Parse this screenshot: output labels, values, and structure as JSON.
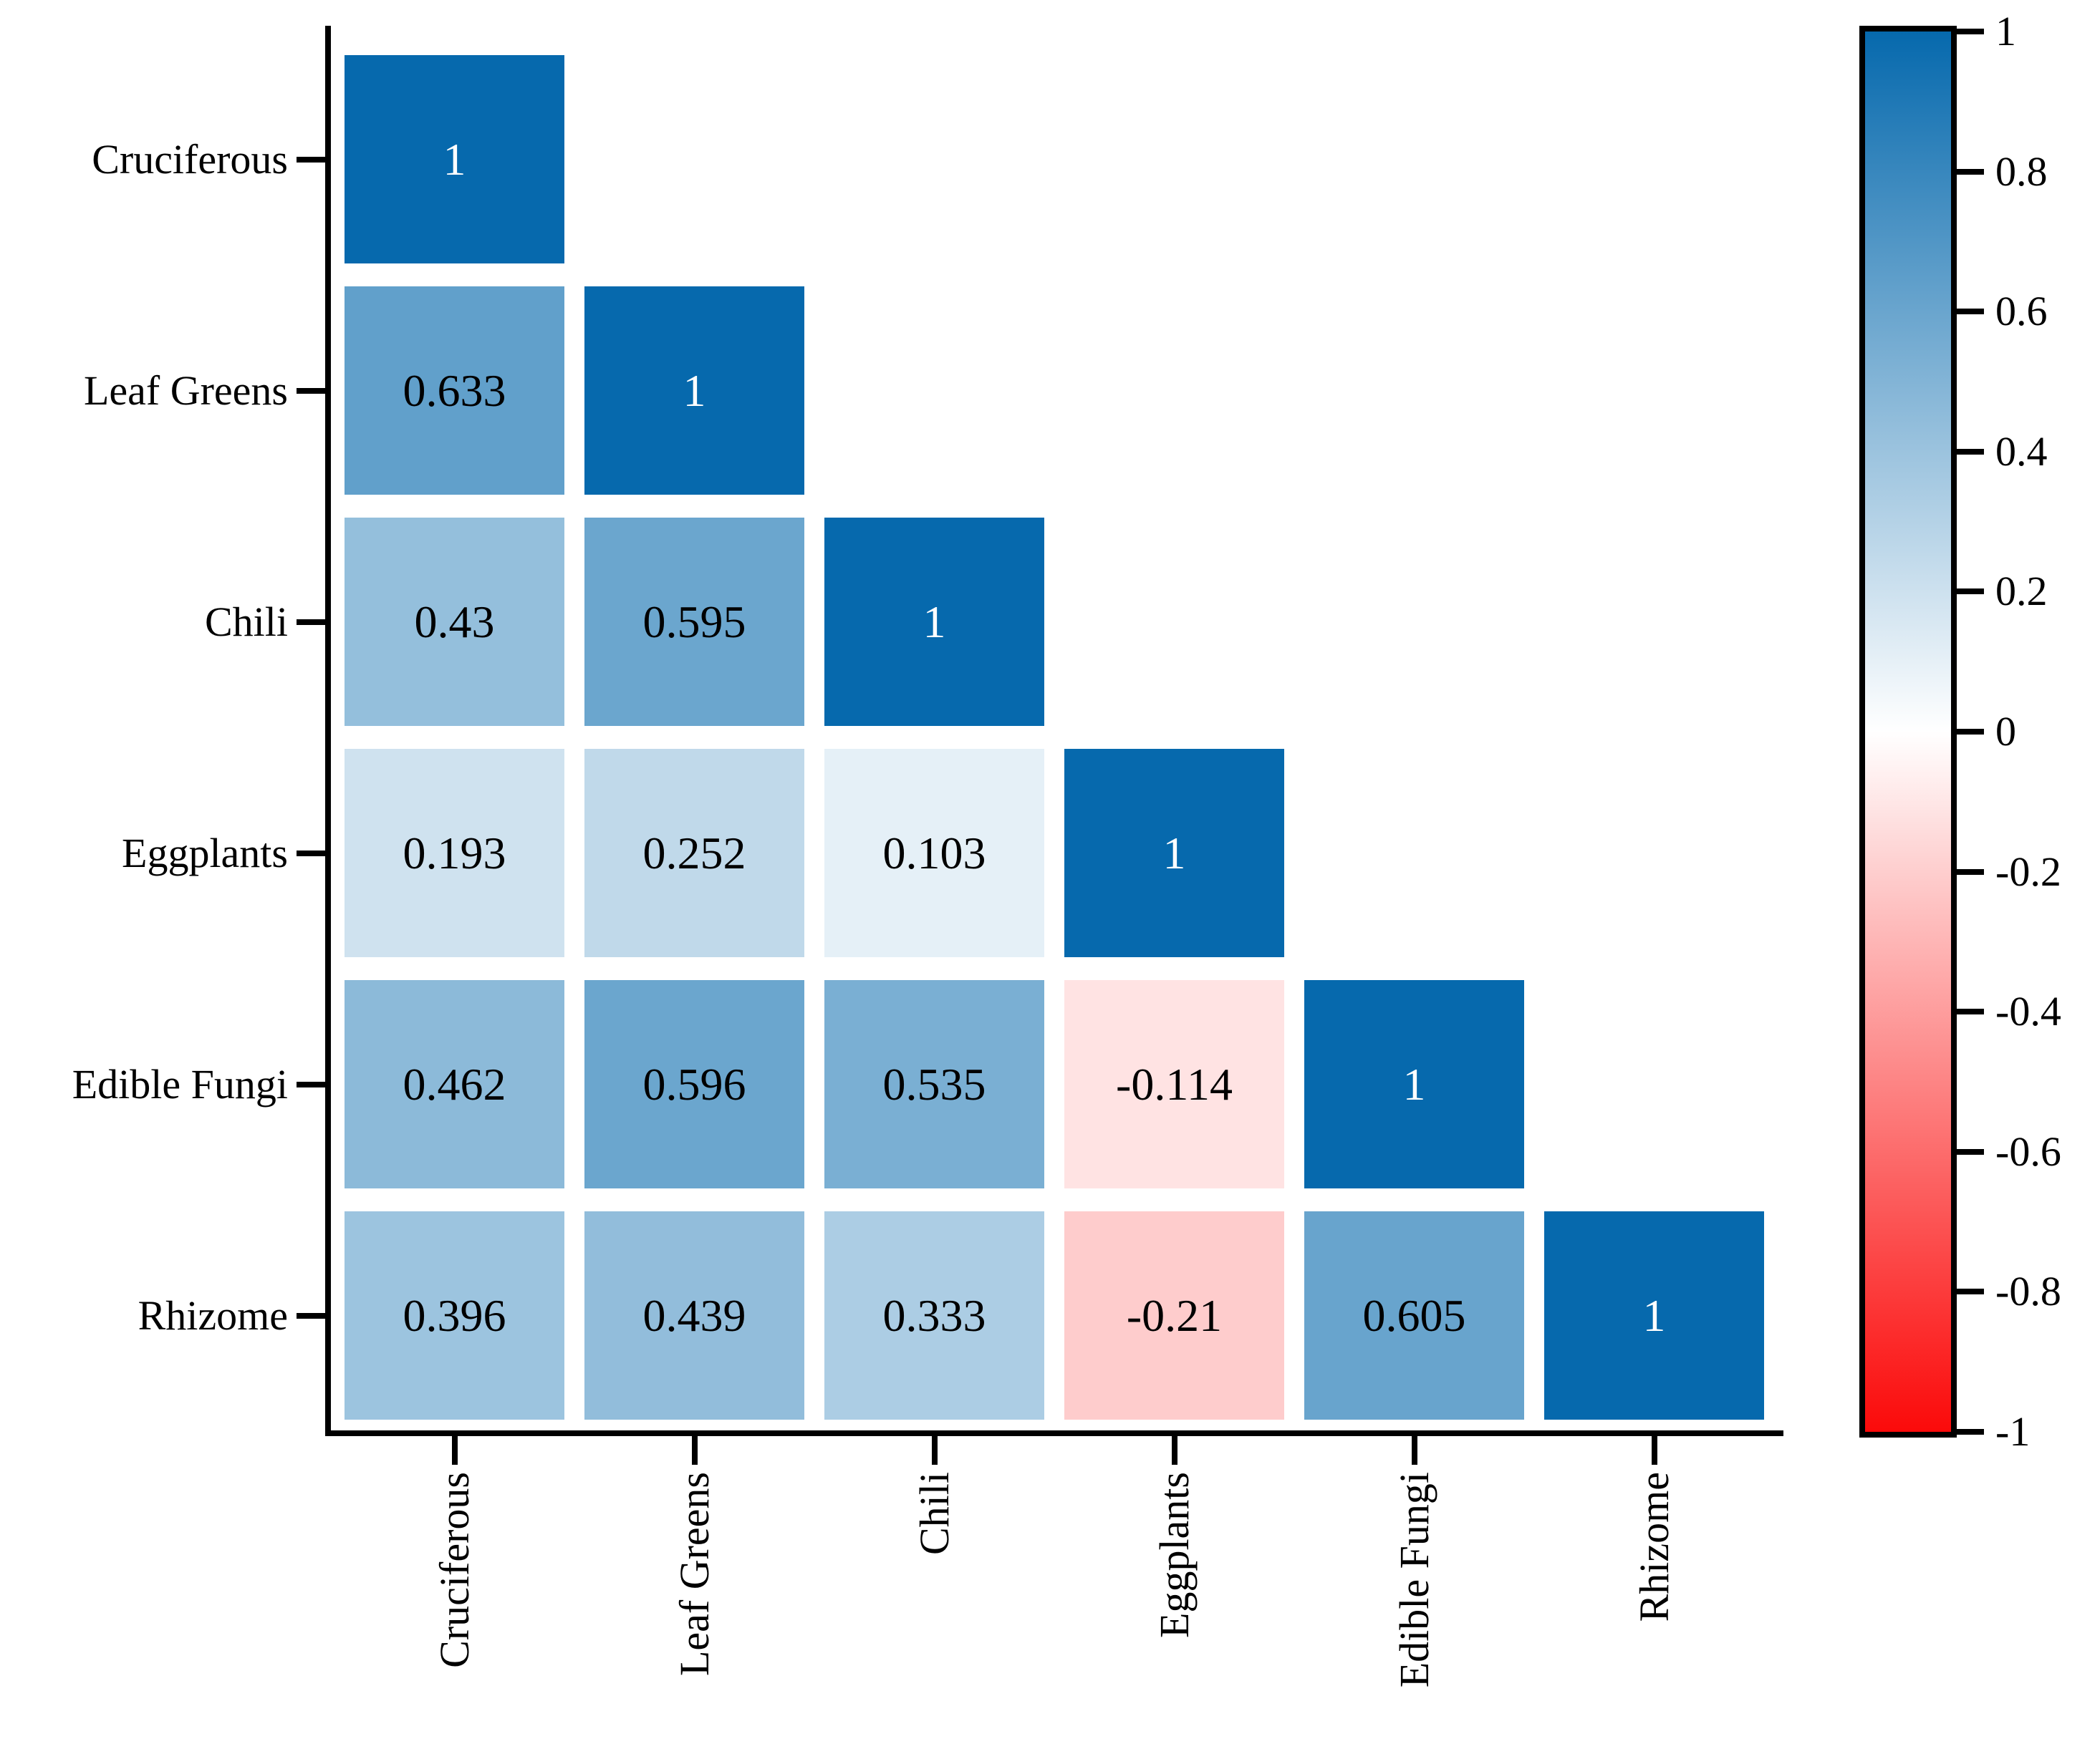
{
  "chart_data": {
    "type": "heatmap",
    "subtype": "correlation_matrix_lower_triangle",
    "title": "",
    "categories": [
      "Cruciferous",
      "Leaf Greens",
      "Chili",
      "Eggplants",
      "Edible Fungi",
      "Rhizome"
    ],
    "rows": [
      {
        "label": "Cruciferous",
        "values": [
          1
        ]
      },
      {
        "label": "Leaf Greens",
        "values": [
          0.633,
          1
        ]
      },
      {
        "label": "Chili",
        "values": [
          0.43,
          0.595,
          1
        ]
      },
      {
        "label": "Eggplants",
        "values": [
          0.193,
          0.252,
          0.103,
          1
        ]
      },
      {
        "label": "Edible Fungi",
        "values": [
          0.462,
          0.596,
          0.535,
          -0.114,
          1
        ]
      },
      {
        "label": "Rhizome",
        "values": [
          0.396,
          0.439,
          0.333,
          -0.21,
          0.605,
          1
        ]
      }
    ],
    "x_tick_labels": [
      "Cruciferous",
      "Leaf Greens",
      "Chili",
      "Eggplants",
      "Edible Fungi",
      "Rhizome"
    ],
    "value_range": [
      -1,
      1
    ],
    "grid": false,
    "legend_position": "right",
    "colorbar": {
      "tick_labels": [
        "1",
        "0.8",
        "0.6",
        "0.4",
        "0.2",
        "0",
        "-0.2",
        "-0.4",
        "-0.6",
        "-0.8",
        "-1"
      ],
      "tick_values": [
        1,
        0.8,
        0.6,
        0.4,
        0.2,
        0,
        -0.2,
        -0.4,
        -0.6,
        -0.8,
        -1
      ],
      "max_color": "#0669AD",
      "mid_color": "#FFFFFF",
      "min_color": "#FB0A0A"
    },
    "styles": {
      "diagonal_text_color": "#FFFFFF",
      "value_text_color": "#000000",
      "axis_color": "#000000",
      "background": "#FFFFFF"
    }
  }
}
